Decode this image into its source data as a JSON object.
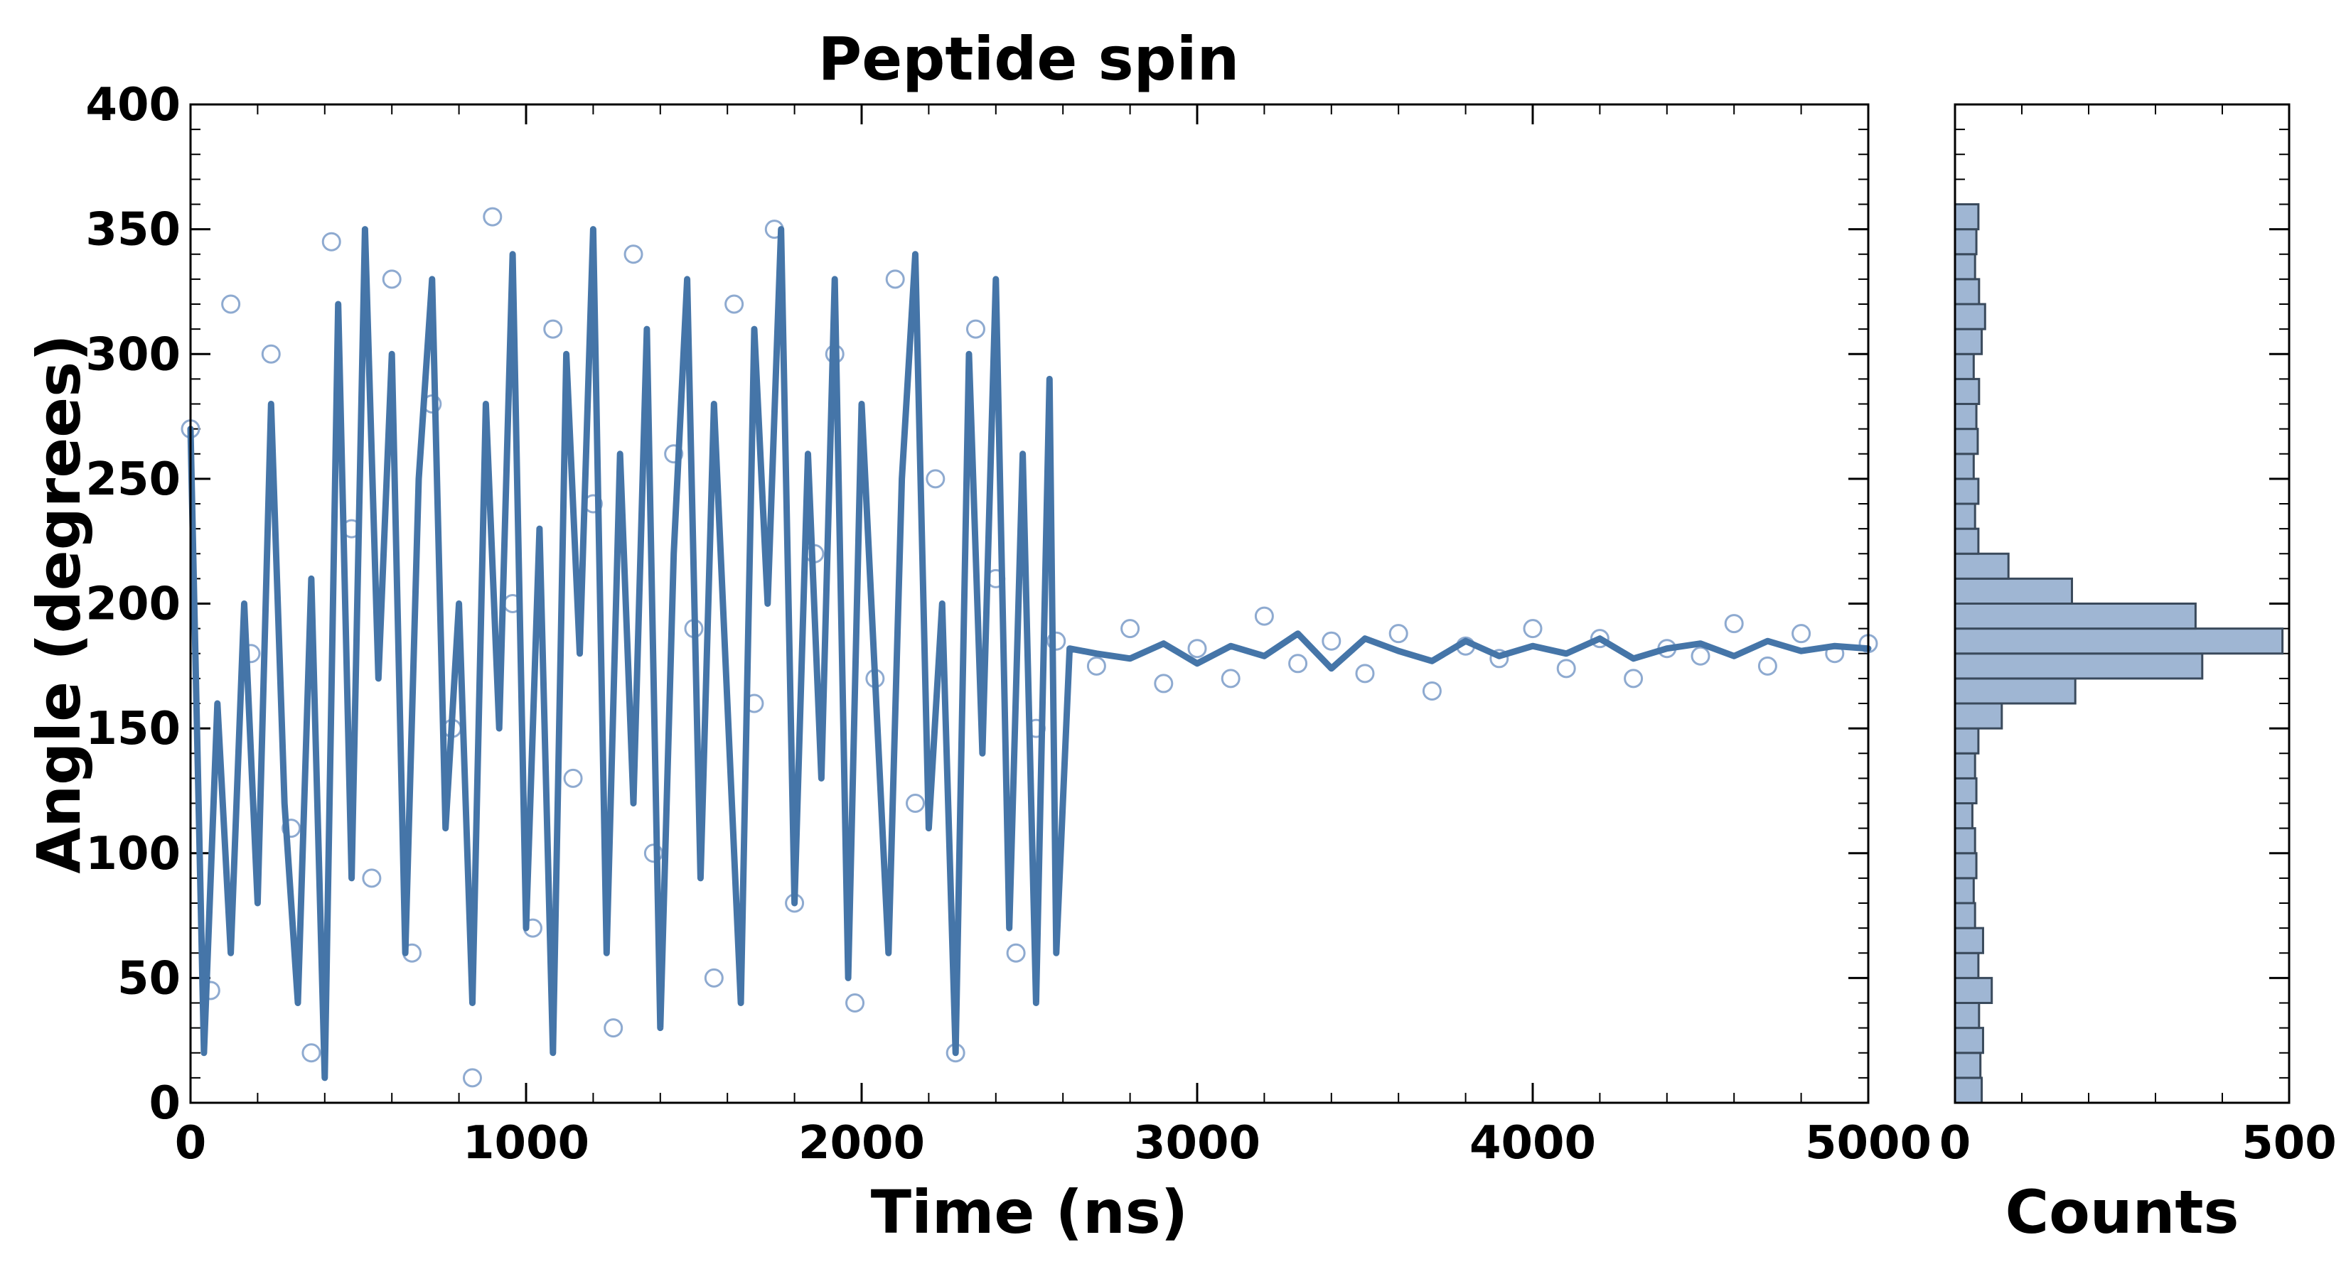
{
  "colors": {
    "line": "#4575a8",
    "marker_edge": "#8eaad0",
    "hist_fill": "#9fb6d3",
    "hist_edge": "#3a4a5c",
    "axes": "#000000"
  },
  "chart_data": [
    {
      "type": "scatter",
      "title": "Peptide spin",
      "xlabel": "Time (ns)",
      "ylabel": "Angle (degrees)",
      "xlim": [
        0,
        5000
      ],
      "ylim": [
        0,
        400
      ],
      "x_ticks": [
        0,
        1000,
        2000,
        3000,
        4000,
        5000
      ],
      "x_tick_labels": [
        "0",
        "1000",
        "2000",
        "3000",
        "4000",
        "5000"
      ],
      "y_ticks": [
        0,
        50,
        100,
        150,
        200,
        250,
        300,
        350,
        400
      ],
      "y_tick_labels": [
        "0",
        "50",
        "100",
        "150",
        "200",
        "250",
        "300",
        "350",
        "400"
      ],
      "grid": false,
      "legend": "none",
      "series": [
        {
          "kind": "markers",
          "marker": "open-circle",
          "description": "raw samples; uniformly scattered 0-360 up to ~2580 ns, then ~178 +/- 15 to 5000 ns",
          "x": [
            0,
            60,
            120,
            180,
            240,
            300,
            360,
            420,
            480,
            540,
            600,
            660,
            720,
            780,
            840,
            900,
            960,
            1020,
            1080,
            1140,
            1200,
            1260,
            1320,
            1380,
            1440,
            1500,
            1560,
            1620,
            1680,
            1740,
            1800,
            1860,
            1920,
            1980,
            2040,
            2100,
            2160,
            2220,
            2280,
            2340,
            2400,
            2460,
            2520,
            2580,
            2700,
            2800,
            2900,
            3000,
            3100,
            3200,
            3300,
            3400,
            3500,
            3600,
            3700,
            3800,
            3900,
            4000,
            4100,
            4200,
            4300,
            4400,
            4500,
            4600,
            4700,
            4800,
            4900,
            5000
          ],
          "y": [
            270,
            45,
            320,
            180,
            300,
            110,
            20,
            345,
            230,
            90,
            330,
            60,
            280,
            150,
            10,
            355,
            200,
            70,
            310,
            130,
            240,
            30,
            340,
            100,
            260,
            190,
            50,
            320,
            160,
            350,
            80,
            220,
            300,
            40,
            170,
            330,
            120,
            250,
            20,
            310,
            210,
            60,
            150,
            185,
            175,
            190,
            168,
            182,
            170,
            195,
            176,
            185,
            172,
            188,
            165,
            183,
            178,
            190,
            174,
            186,
            170,
            182,
            179,
            192,
            175,
            188,
            180,
            184
          ]
        },
        {
          "kind": "line",
          "description": "smoothed trajectory; rapid 0-360 jumps before ~2580 ns, then flat near 180",
          "x": [
            0,
            40,
            80,
            120,
            160,
            200,
            240,
            280,
            320,
            360,
            400,
            440,
            480,
            520,
            560,
            600,
            640,
            680,
            720,
            760,
            800,
            840,
            880,
            920,
            960,
            1000,
            1040,
            1080,
            1120,
            1160,
            1200,
            1240,
            1280,
            1320,
            1360,
            1400,
            1440,
            1480,
            1520,
            1560,
            1600,
            1640,
            1680,
            1720,
            1760,
            1800,
            1840,
            1880,
            1920,
            1960,
            2000,
            2040,
            2080,
            2120,
            2160,
            2200,
            2240,
            2280,
            2320,
            2360,
            2400,
            2440,
            2480,
            2520,
            2560,
            2580,
            2620,
            2700,
            2800,
            2900,
            3000,
            3100,
            3200,
            3300,
            3400,
            3500,
            3600,
            3700,
            3800,
            3900,
            4000,
            4100,
            4200,
            4300,
            4400,
            4500,
            4600,
            4700,
            4800,
            4900,
            5000
          ],
          "y": [
            270,
            20,
            160,
            60,
            200,
            80,
            280,
            120,
            40,
            210,
            10,
            320,
            90,
            350,
            170,
            300,
            60,
            250,
            330,
            110,
            200,
            40,
            280,
            150,
            340,
            70,
            230,
            20,
            300,
            180,
            350,
            60,
            260,
            120,
            310,
            30,
            220,
            330,
            90,
            280,
            160,
            40,
            310,
            200,
            350,
            80,
            260,
            130,
            330,
            50,
            280,
            170,
            60,
            250,
            340,
            110,
            200,
            20,
            300,
            140,
            330,
            70,
            260,
            40,
            290,
            60,
            182,
            180,
            178,
            184,
            176,
            183,
            179,
            188,
            174,
            186,
            181,
            177,
            185,
            179,
            183,
            180,
            186,
            178,
            182,
            184,
            179,
            185,
            181,
            183,
            182
          ]
        }
      ]
    },
    {
      "type": "bar",
      "orientation": "horizontal",
      "xlabel": "Counts",
      "ylabel": "",
      "xlim": [
        0,
        500
      ],
      "ylim": [
        0,
        400
      ],
      "x_ticks": [
        0,
        500
      ],
      "x_tick_labels": [
        "0",
        "500"
      ],
      "grid": false,
      "legend": "none",
      "bin_width": 10,
      "bin_starts": [
        0,
        10,
        20,
        30,
        40,
        50,
        60,
        70,
        80,
        90,
        100,
        110,
        120,
        130,
        140,
        150,
        160,
        170,
        180,
        190,
        200,
        210,
        220,
        230,
        240,
        250,
        260,
        270,
        280,
        290,
        300,
        310,
        320,
        330,
        340,
        350
      ],
      "values": [
        40,
        38,
        42,
        36,
        55,
        35,
        42,
        30,
        28,
        32,
        30,
        26,
        32,
        30,
        35,
        70,
        180,
        370,
        490,
        360,
        175,
        80,
        35,
        30,
        35,
        28,
        34,
        32,
        36,
        28,
        40,
        45,
        36,
        30,
        32,
        35
      ]
    }
  ]
}
